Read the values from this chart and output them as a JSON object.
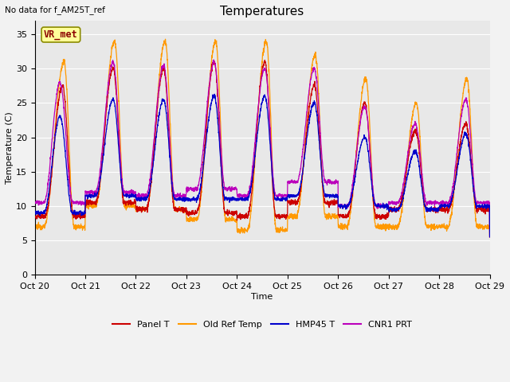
{
  "title": "Temperatures",
  "xlabel": "Time",
  "ylabel": "Temperature (C)",
  "note": "No data for f_AM25T_ref",
  "label_box": "VR_met",
  "ylim": [
    0,
    37
  ],
  "yticks": [
    0,
    5,
    10,
    15,
    20,
    25,
    30,
    35
  ],
  "days": [
    "Oct 20",
    "Oct 21",
    "Oct 22",
    "Oct 23",
    "Oct 24",
    "Oct 25",
    "Oct 26",
    "Oct 27",
    "Oct 28",
    "Oct 29"
  ],
  "colors": {
    "panel_t": "#CC0000",
    "old_ref": "#FF9900",
    "hmp45": "#0000CC",
    "cnr1": "#BB00BB"
  },
  "legend": [
    {
      "label": "Panel T",
      "color": "#CC0000"
    },
    {
      "label": "Old Ref Temp",
      "color": "#FF9900"
    },
    {
      "label": "HMP45 T",
      "color": "#0000CC"
    },
    {
      "label": "CNR1 PRT",
      "color": "#BB00BB"
    }
  ],
  "fig_width": 6.4,
  "fig_height": 4.8,
  "dpi": 100
}
